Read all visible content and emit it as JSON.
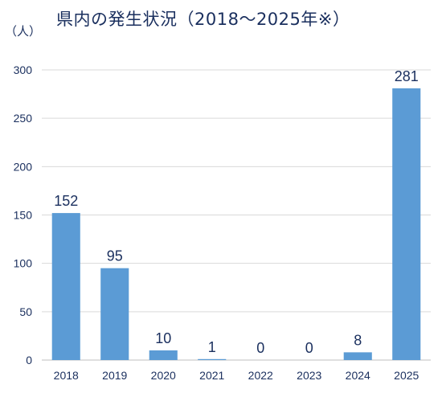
{
  "chart_data": {
    "type": "bar",
    "title": "県内の発生状況（2018～2025年※）",
    "ylabel": "（人）",
    "xlabel": "",
    "categories": [
      "2018",
      "2019",
      "2020",
      "2021",
      "2022",
      "2023",
      "2024",
      "2025"
    ],
    "values": [
      152,
      95,
      10,
      1,
      0,
      0,
      8,
      281
    ],
    "data_labels": [
      "152",
      "95",
      "10",
      "1",
      "0",
      "0",
      "8",
      "281"
    ],
    "ylim": [
      0,
      300
    ],
    "yticks": [
      "0",
      "50",
      "100",
      "150",
      "200",
      "250",
      "300"
    ],
    "grid": true,
    "bar_color": "#5b9bd5",
    "gridline_color": "#d9d9d9",
    "text_color": "#1a2f5e"
  }
}
